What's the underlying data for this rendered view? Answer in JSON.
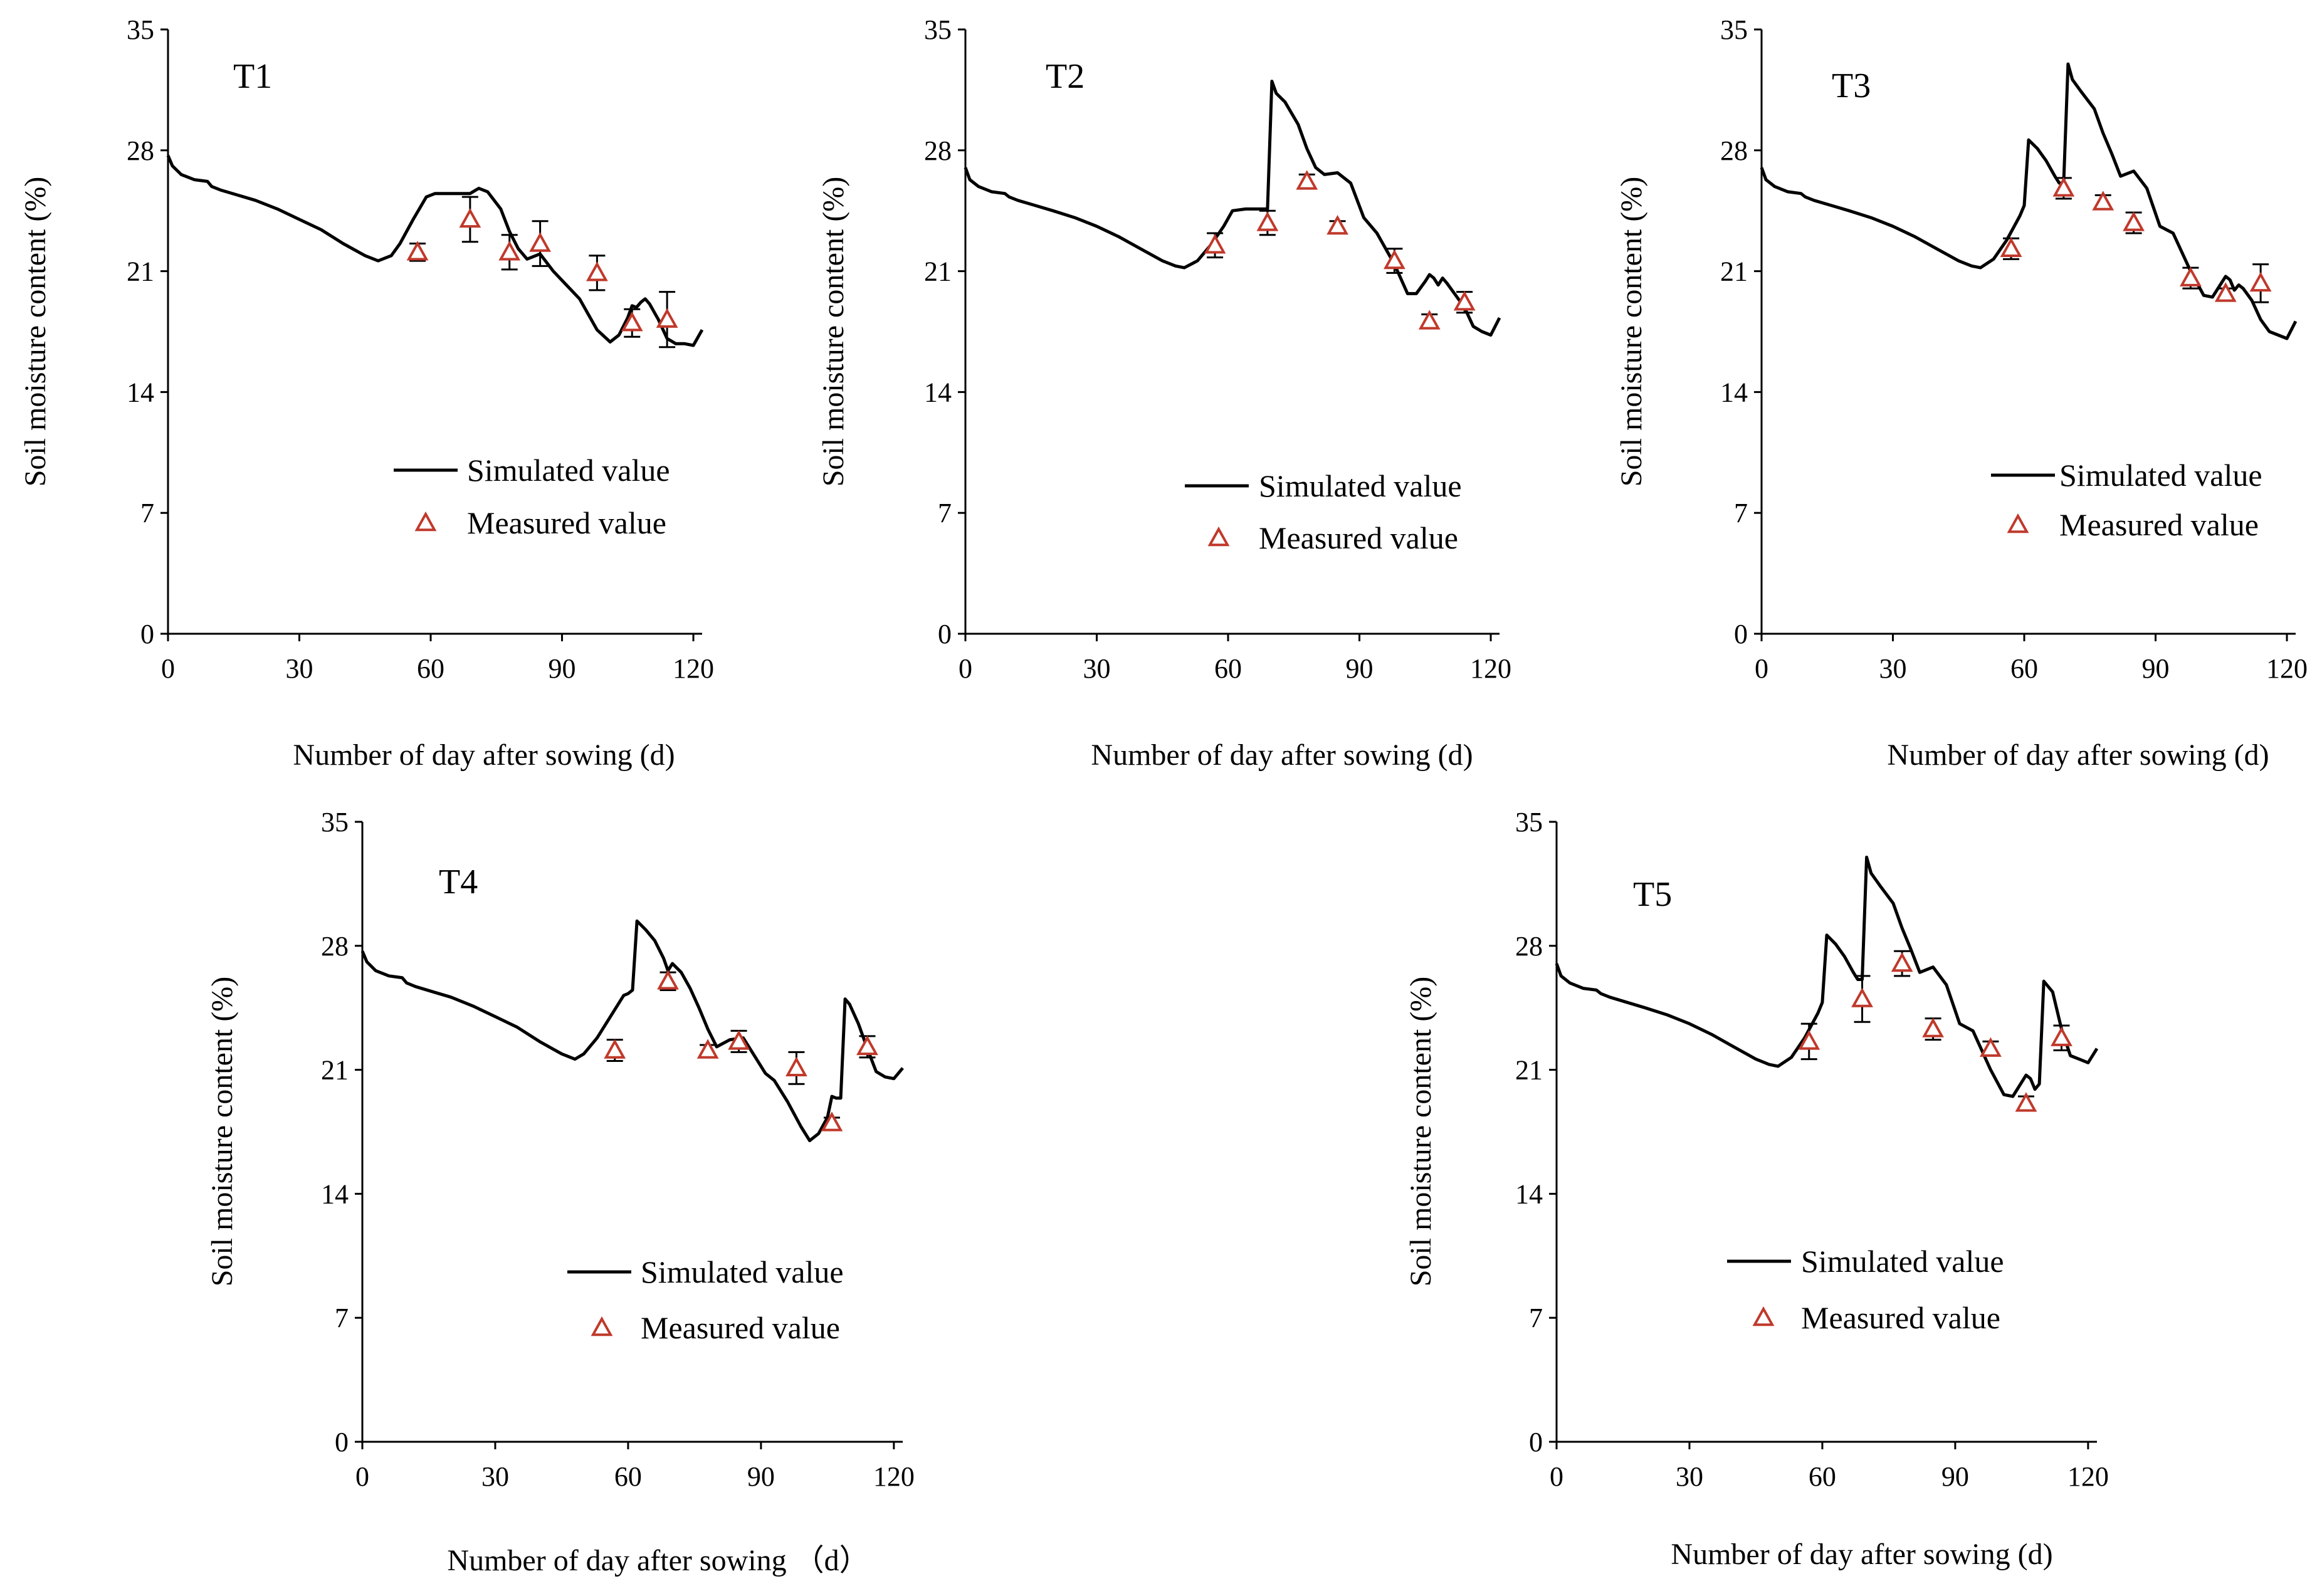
{
  "colors": {
    "simulated": "#000000",
    "measured": "#c0392b",
    "error_bar": "#000000"
  },
  "chart_data": [
    {
      "type": "line",
      "panel": "T1",
      "title": "T1",
      "xlabel": "Number of day after sowing (d)",
      "ylabel": "Soil moisture content (%)",
      "xlim": [
        0,
        122
      ],
      "ylim": [
        0,
        35
      ],
      "xticks": [
        0,
        30,
        60,
        90,
        120
      ],
      "yticks": [
        0,
        7,
        14,
        21,
        28,
        35
      ],
      "legend": {
        "position": "center-right",
        "simulated_label": "Simulated value",
        "measured_label": "Measured value"
      },
      "series": [
        {
          "name": "Simulated value",
          "style": "line",
          "x": [
            0,
            1,
            3,
            6,
            9,
            10,
            12,
            16,
            20,
            25,
            30,
            35,
            40,
            45,
            48,
            51,
            53,
            56,
            59,
            61,
            64,
            67,
            69,
            71,
            73,
            76,
            78,
            80,
            82,
            85,
            88,
            91,
            94,
            98,
            101,
            103,
            105,
            106,
            107,
            108,
            109,
            110,
            112,
            114,
            116,
            118,
            120,
            122
          ],
          "y": [
            27.7,
            27.1,
            26.6,
            26.3,
            26.2,
            25.9,
            25.7,
            25.4,
            25.1,
            24.6,
            24.0,
            23.4,
            22.6,
            21.9,
            21.6,
            21.9,
            22.6,
            24.0,
            25.3,
            25.5,
            25.5,
            25.5,
            25.5,
            25.8,
            25.6,
            24.6,
            23.3,
            22.3,
            21.7,
            22.0,
            21.0,
            20.2,
            19.4,
            17.6,
            16.9,
            17.3,
            18.3,
            19.0,
            18.9,
            19.2,
            19.4,
            19.1,
            18.2,
            17.1,
            16.8,
            16.8,
            16.7,
            17.6
          ]
        },
        {
          "name": "Measured value",
          "style": "marker",
          "x": [
            57,
            69,
            78,
            85,
            98,
            106,
            114
          ],
          "y": [
            22.1,
            24.0,
            22.1,
            22.6,
            20.9,
            18.0,
            18.2
          ],
          "error": [
            0.5,
            1.3,
            1.0,
            1.3,
            1.0,
            0.8,
            1.6
          ]
        }
      ]
    },
    {
      "type": "line",
      "panel": "T2",
      "title": "T2",
      "xlabel": "Number of day after sowing (d)",
      "ylabel": "Soil moisture content  (%)",
      "xlim": [
        0,
        122
      ],
      "ylim": [
        0,
        35
      ],
      "xticks": [
        0,
        30,
        60,
        90,
        120
      ],
      "yticks": [
        0,
        7,
        14,
        21,
        28,
        35
      ],
      "legend": {
        "position": "center-right",
        "simulated_label": "Simulated value",
        "measured_label": "Measured value"
      },
      "series": [
        {
          "name": "Simulated value",
          "style": "line",
          "x": [
            0,
            1,
            3,
            6,
            9,
            10,
            12,
            16,
            20,
            25,
            30,
            35,
            40,
            45,
            48,
            50,
            53,
            56,
            59,
            61,
            64,
            67,
            69,
            70,
            71,
            73,
            76,
            78,
            80,
            82,
            85,
            88,
            91,
            94,
            98,
            101,
            103,
            105,
            106,
            107,
            108,
            109,
            110,
            112,
            114,
            116,
            118,
            120,
            122
          ],
          "y": [
            27.0,
            26.3,
            25.9,
            25.6,
            25.5,
            25.3,
            25.1,
            24.8,
            24.5,
            24.1,
            23.6,
            23.0,
            22.3,
            21.6,
            21.3,
            21.2,
            21.6,
            22.5,
            23.6,
            24.5,
            24.6,
            24.6,
            24.6,
            32.0,
            31.3,
            30.8,
            29.5,
            28.1,
            27.0,
            26.6,
            26.7,
            26.1,
            24.1,
            23.2,
            21.4,
            19.7,
            19.7,
            20.4,
            20.8,
            20.6,
            20.2,
            20.6,
            20.3,
            19.6,
            18.9,
            17.8,
            17.5,
            17.3,
            18.3
          ]
        },
        {
          "name": "Measured value",
          "style": "marker",
          "x": [
            57,
            69,
            78,
            85,
            98,
            106,
            114
          ],
          "y": [
            22.5,
            23.8,
            26.2,
            23.6,
            21.6,
            18.1,
            19.2
          ],
          "error": [
            0.7,
            0.7,
            0.4,
            0.3,
            0.7,
            0.4,
            0.6
          ]
        }
      ]
    },
    {
      "type": "line",
      "panel": "T3",
      "title": "T3",
      "xlabel": "Number of day after sowing (d)",
      "ylabel": "Soil moisture content  (%)",
      "xlim": [
        0,
        122
      ],
      "ylim": [
        0,
        35
      ],
      "xticks": [
        0,
        30,
        60,
        90,
        120
      ],
      "yticks": [
        0,
        7,
        14,
        21,
        28,
        35
      ],
      "legend": {
        "position": "center-right",
        "simulated_label": "Simulated value",
        "measured_label": "Measured value"
      },
      "series": [
        {
          "name": "Simulated value",
          "style": "line",
          "x": [
            0,
            1,
            3,
            6,
            9,
            10,
            12,
            16,
            20,
            25,
            30,
            35,
            40,
            45,
            48,
            50,
            53,
            56,
            59,
            60,
            61,
            63,
            65,
            67,
            68,
            69,
            70,
            71,
            73,
            76,
            78,
            80,
            82,
            85,
            88,
            91,
            94,
            98,
            101,
            103,
            105,
            106,
            107,
            108,
            109,
            110,
            112,
            114,
            116,
            118,
            120,
            122
          ],
          "y": [
            27.0,
            26.3,
            25.9,
            25.6,
            25.5,
            25.3,
            25.1,
            24.8,
            24.5,
            24.1,
            23.6,
            23.0,
            22.3,
            21.6,
            21.3,
            21.2,
            21.7,
            22.8,
            24.2,
            24.8,
            28.6,
            28.1,
            27.4,
            26.5,
            26.1,
            26.1,
            33.0,
            32.1,
            31.4,
            30.4,
            29.0,
            27.8,
            26.5,
            26.8,
            25.8,
            23.6,
            23.2,
            21.0,
            19.6,
            19.5,
            20.3,
            20.7,
            20.5,
            19.9,
            20.2,
            20.0,
            19.3,
            18.2,
            17.5,
            17.3,
            17.1,
            18.1
          ]
        },
        {
          "name": "Measured value",
          "style": "marker",
          "x": [
            57,
            69,
            78,
            85,
            98,
            106,
            114
          ],
          "y": [
            22.3,
            25.8,
            25.0,
            23.8,
            20.6,
            19.7,
            20.3
          ],
          "error": [
            0.6,
            0.6,
            0.4,
            0.6,
            0.6,
            0.3,
            1.1
          ]
        }
      ]
    },
    {
      "type": "line",
      "panel": "T4",
      "title": "T4",
      "xlabel": "Number of day after sowing （d）",
      "ylabel": "Soil moisture content (%)",
      "xlim": [
        0,
        122
      ],
      "ylim": [
        0,
        35
      ],
      "xticks": [
        0,
        30,
        60,
        90,
        120
      ],
      "yticks": [
        0,
        7,
        14,
        21,
        28,
        35
      ],
      "legend": {
        "position": "center-right",
        "simulated_label": "Simulated value",
        "measured_label": "Measured value"
      },
      "series": [
        {
          "name": "Simulated value",
          "style": "line",
          "x": [
            0,
            1,
            3,
            6,
            9,
            10,
            12,
            16,
            20,
            25,
            30,
            35,
            40,
            45,
            48,
            50,
            53,
            56,
            59,
            60,
            61,
            62,
            64,
            66,
            68,
            69,
            70,
            72,
            74,
            76,
            78,
            80,
            83,
            86,
            89,
            91,
            93,
            96,
            99,
            101,
            103,
            105,
            106,
            107,
            108,
            109,
            110,
            112,
            114,
            116,
            118,
            120,
            122
          ],
          "y": [
            27.7,
            27.1,
            26.6,
            26.3,
            26.2,
            25.9,
            25.7,
            25.4,
            25.1,
            24.6,
            24.0,
            23.4,
            22.6,
            21.9,
            21.6,
            21.9,
            22.8,
            24.0,
            25.2,
            25.3,
            25.5,
            29.4,
            28.9,
            28.3,
            27.3,
            26.6,
            27.0,
            26.5,
            25.6,
            24.5,
            23.3,
            22.3,
            22.7,
            22.8,
            21.6,
            20.8,
            20.4,
            19.2,
            17.8,
            17.0,
            17.4,
            18.3,
            19.5,
            19.4,
            19.4,
            25.0,
            24.7,
            23.6,
            22.2,
            20.9,
            20.6,
            20.5,
            21.1
          ]
        },
        {
          "name": "Measured value",
          "style": "marker",
          "x": [
            57,
            69,
            78,
            85,
            98,
            106,
            114
          ],
          "y": [
            22.1,
            26.0,
            22.1,
            22.6,
            21.1,
            18.0,
            22.3
          ],
          "error": [
            0.6,
            0.5,
            0.3,
            0.6,
            0.9,
            0.3,
            0.6
          ]
        }
      ]
    },
    {
      "type": "line",
      "panel": "T5",
      "title": "T5",
      "xlabel": "Number of day after sowing (d)",
      "ylabel": "Soil moisture content (%)",
      "xlim": [
        0,
        122
      ],
      "ylim": [
        0,
        35
      ],
      "xticks": [
        0,
        30,
        60,
        90,
        120
      ],
      "yticks": [
        0,
        7,
        14,
        21,
        28,
        35
      ],
      "legend": {
        "position": "center-right",
        "simulated_label": "Simulated value",
        "measured_label": "Measured value"
      },
      "series": [
        {
          "name": "Simulated value",
          "style": "line",
          "x": [
            0,
            1,
            3,
            6,
            9,
            10,
            12,
            16,
            20,
            25,
            30,
            35,
            40,
            45,
            48,
            50,
            53,
            56,
            59,
            60,
            61,
            63,
            65,
            67,
            68,
            69,
            70,
            71,
            73,
            76,
            78,
            80,
            82,
            85,
            88,
            91,
            94,
            98,
            101,
            103,
            105,
            106,
            107,
            108,
            109,
            110,
            112,
            114,
            116,
            118,
            120,
            122
          ],
          "y": [
            27.0,
            26.3,
            25.9,
            25.6,
            25.5,
            25.3,
            25.1,
            24.8,
            24.5,
            24.1,
            23.6,
            23.0,
            22.3,
            21.6,
            21.3,
            21.2,
            21.7,
            22.8,
            24.2,
            24.8,
            28.6,
            28.1,
            27.4,
            26.5,
            26.1,
            26.1,
            33.0,
            32.1,
            31.4,
            30.4,
            29.0,
            27.8,
            26.5,
            26.8,
            25.8,
            23.6,
            23.2,
            21.0,
            19.6,
            19.5,
            20.3,
            20.7,
            20.5,
            19.9,
            20.2,
            26.0,
            25.4,
            23.3,
            21.8,
            21.6,
            21.4,
            22.2
          ]
        },
        {
          "name": "Measured value",
          "style": "marker",
          "x": [
            57,
            69,
            78,
            85,
            98,
            106,
            114
          ],
          "y": [
            22.6,
            25.0,
            27.0,
            23.3,
            22.2,
            19.1,
            22.8
          ],
          "error": [
            1.0,
            1.3,
            0.7,
            0.6,
            0.4,
            0.4,
            0.7
          ]
        }
      ]
    }
  ]
}
